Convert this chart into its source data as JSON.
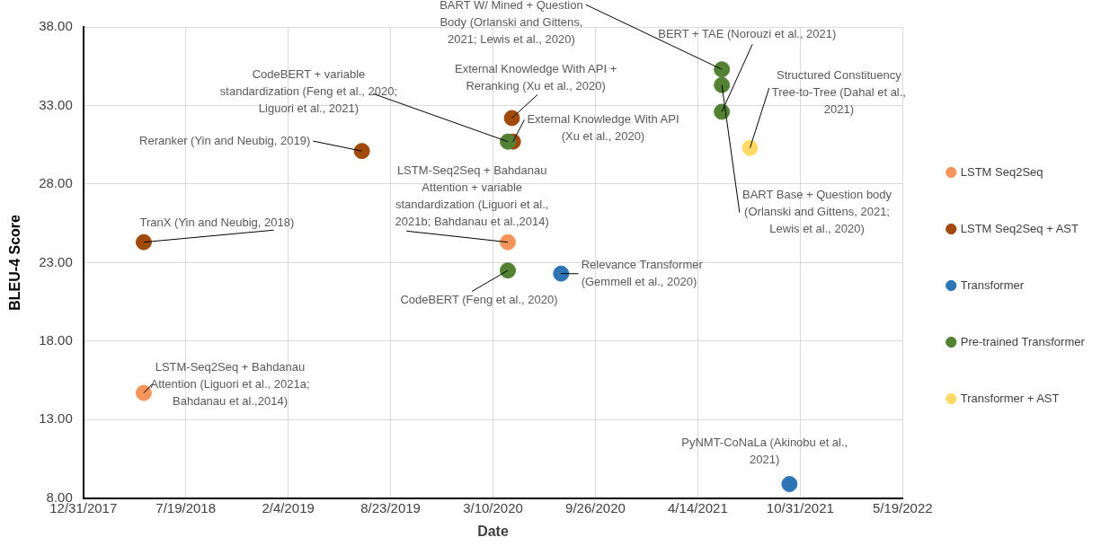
{
  "chart_data": {
    "type": "scatter",
    "xlabel": "Date",
    "ylabel": "BLEU-4 Score",
    "xlim": [
      "2017-12-31",
      "2022-05-19"
    ],
    "xticks": [
      {
        "value": "2017-12-31",
        "label": "12/31/2017"
      },
      {
        "value": "2018-07-19",
        "label": "7/19/2018"
      },
      {
        "value": "2019-02-04",
        "label": "2/4/2019"
      },
      {
        "value": "2019-08-23",
        "label": "8/23/2019"
      },
      {
        "value": "2020-03-10",
        "label": "3/10/2020"
      },
      {
        "value": "2020-09-26",
        "label": "9/26/2020"
      },
      {
        "value": "2021-04-14",
        "label": "4/14/2021"
      },
      {
        "value": "2021-10-31",
        "label": "10/31/2021"
      },
      {
        "value": "2022-05-19",
        "label": "5/19/2022"
      }
    ],
    "ylim": [
      8,
      38
    ],
    "yticks": [
      {
        "value": 8,
        "label": "8.00"
      },
      {
        "value": 13,
        "label": "13.00"
      },
      {
        "value": 18,
        "label": "18.00"
      },
      {
        "value": 23,
        "label": "23.00"
      },
      {
        "value": 28,
        "label": "28.00"
      },
      {
        "value": 33,
        "label": "33.00"
      },
      {
        "value": 38,
        "label": "38.00"
      }
    ],
    "grid": true,
    "legend": "right",
    "marker": "circle",
    "series": [
      {
        "name": "LSTM Seq2Seq",
        "color": "#f4945a",
        "x": [
          "2018-04-28",
          "2020-04-08"
        ],
        "values": [
          14.7,
          24.3
        ]
      },
      {
        "name": "LSTM Seq2Seq + AST",
        "color": "#a04a0c",
        "x": [
          "2018-04-28",
          "2019-06-28",
          "2020-04-16",
          "2020-04-18"
        ],
        "values": [
          24.3,
          30.1,
          32.2,
          30.7
        ]
      },
      {
        "name": "Transformer",
        "color": "#2e75b6",
        "x": [
          "2020-07-21",
          "2021-10-10"
        ],
        "values": [
          22.3,
          8.9
        ]
      },
      {
        "name": "Pre-trained Transformer",
        "color": "#548235",
        "x": [
          "2020-04-08",
          "2020-04-08",
          "2021-05-31",
          "2021-05-31",
          "2021-05-31"
        ],
        "values": [
          30.7,
          22.5,
          35.3,
          34.3,
          32.6
        ]
      },
      {
        "name": "Transformer + AST",
        "color": "#ffd966",
        "x": [
          "2021-07-25"
        ],
        "values": [
          30.3
        ]
      }
    ],
    "annotations": [
      {
        "text": "TranX (Yin and Neubig, 2018)",
        "x": "2018-04-28",
        "y": 24.3
      },
      {
        "text": "Reranker (Yin and Neubig, 2019)",
        "x": "2019-06-28",
        "y": 30.1
      },
      {
        "text": "LSTM-Seq2Seq + Bahdanau Attention (Liguori et al., 2021a; Bahdanau et al.,2014)",
        "x": "2018-04-28",
        "y": 14.7
      },
      {
        "text": "CodeBERT + variable standardization (Feng et al., 2020; Liguori et al., 2021)",
        "x": "2020-04-08",
        "y": 30.7
      },
      {
        "text": "External Knowledge With API + Reranking (Xu et al., 2020)",
        "x": "2020-04-16",
        "y": 32.2
      },
      {
        "text": "External Knowledge With API (Xu et al., 2020)",
        "x": "2020-04-18",
        "y": 30.7
      },
      {
        "text": "LSTM-Seq2Seq + Bahdanau Attention + variable standardization (Liguori et al., 2021b; Bahdanau et al.,2014)",
        "x": "2020-04-08",
        "y": 24.3
      },
      {
        "text": "CodeBERT (Feng et al., 2020)",
        "x": "2020-04-08",
        "y": 22.5
      },
      {
        "text": "Relevance Transformer (Gemmell et al., 2020)",
        "x": "2020-07-21",
        "y": 22.3
      },
      {
        "text": "BART W/ Mined + Question Body (Orlanski and Gittens, 2021; Lewis et al., 2020)",
        "x": "2021-05-31",
        "y": 35.3
      },
      {
        "text": "BERT + TAE (Norouzi et al., 2021)",
        "x": "2021-05-31",
        "y": 32.6
      },
      {
        "text": "BART Base + Question body (Orlanski and Gittens, 2021; Lewis et al., 2020)",
        "x": "2021-05-31",
        "y": 34.3
      },
      {
        "text": "Structured Constituency Tree-to-Tree (Dahal et al., 2021)",
        "x": "2021-07-25",
        "y": 30.3
      },
      {
        "text": "PyNMT-CoNaLa (Akinobu et al., 2021)",
        "x": "2021-10-10",
        "y": 8.9
      }
    ]
  }
}
